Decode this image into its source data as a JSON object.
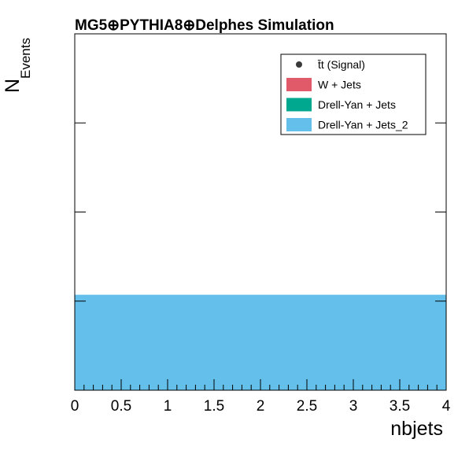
{
  "chart_data": {
    "type": "bar",
    "title": "MG5⊕PYTHIA8⊕Delphes Simulation",
    "xlabel": "nbjets",
    "ylabel_main": "N",
    "ylabel_sub": "Events",
    "xlim": [
      0,
      4
    ],
    "x_ticks": [
      "0",
      "0.5",
      "1",
      "1.5",
      "2",
      "2.5",
      "3",
      "3.5",
      "4"
    ],
    "ylim": [
      0,
      1.12
    ],
    "legend_position": "top-right",
    "legend": [
      {
        "label": "t̄t (Signal)",
        "style": "marker",
        "color": "#3a3a3a"
      },
      {
        "label": "W + Jets",
        "style": "fill",
        "color": "#e05a6a"
      },
      {
        "label": "Drell-Yan + Jets",
        "style": "fill",
        "color": "#00a88f"
      },
      {
        "label": "Drell-Yan + Jets_2",
        "style": "fill",
        "color": "#64bfea"
      }
    ],
    "bars": [
      {
        "series": "Drell-Yan + Jets_2",
        "x0": 0,
        "x1": 4,
        "value": 0.3,
        "color": "#64bfea"
      }
    ]
  }
}
